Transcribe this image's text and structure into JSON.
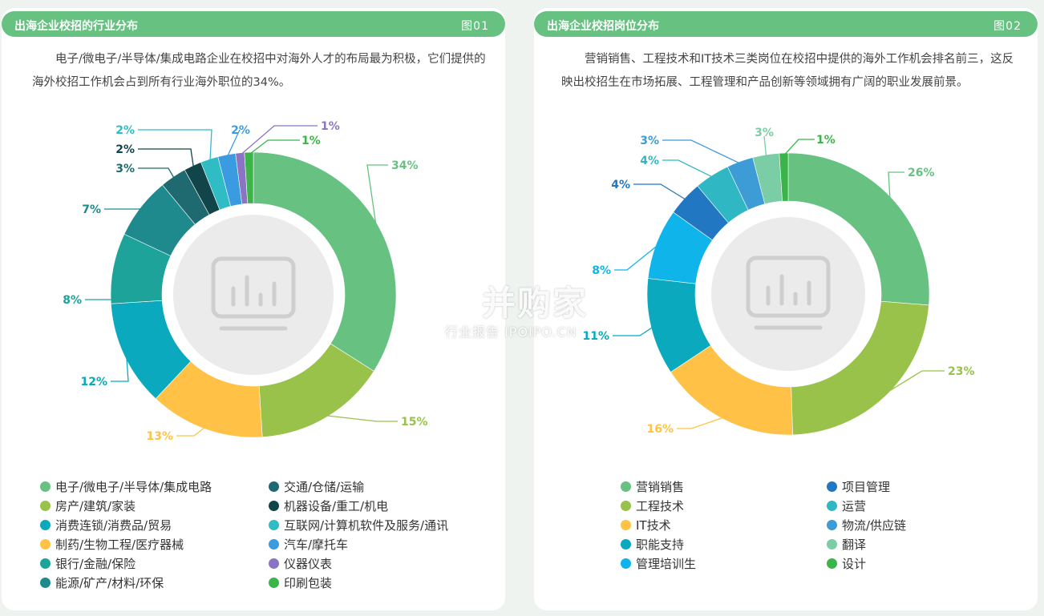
{
  "watermark": {
    "main": "并购家",
    "sub": "行业报告 IPOIPO.CN"
  },
  "panels": [
    {
      "title": "出海企业校招的行业分布",
      "figure": "图01",
      "description": "电子/微电子/半导体/集成电路企业在校招中对海外人才的布局最为积极，它们提供的海外校招工作机会占到所有行业海外职位的34%。"
    },
    {
      "title": "出海企业校招岗位分布",
      "figure": "图02",
      "description": "营销销售、工程技术和IT技术三类岗位在校招中提供的海外工作机会排名前三，这反映出校招生在市场拓展、工程管理和产品创新等领域拥有广阔的职业发展前景。"
    }
  ],
  "chart_data": [
    {
      "type": "pie",
      "donut": true,
      "title": "出海企业校招的行业分布",
      "slices": [
        {
          "label": "电子/微电子/半导体/集成电路",
          "value": 34,
          "color": "#67c282"
        },
        {
          "label": "房产/建筑/家装",
          "value": 15,
          "color": "#99c24a"
        },
        {
          "label": "制药/生物工程/医疗器械",
          "value": 13,
          "color": "#ffc247"
        },
        {
          "label": "消费连锁/消费品/贸易",
          "value": 12,
          "color": "#0aa9bd"
        },
        {
          "label": "银行/金融/保险",
          "value": 8,
          "color": "#1da399"
        },
        {
          "label": "能源/矿产/材料/环保",
          "value": 7,
          "color": "#1f8a8d"
        },
        {
          "label": "交通/仓储/运输",
          "value": 3,
          "color": "#1e6a70"
        },
        {
          "label": "机器设备/重工/机电",
          "value": 2,
          "color": "#12454a"
        },
        {
          "label": "互联网/计算机软件及服务/通讯",
          "value": 2,
          "color": "#2fbcc5"
        },
        {
          "label": "汽车/摩托车",
          "value": 2,
          "color": "#3b9be1"
        },
        {
          "label": "仪器仪表",
          "value": 1,
          "color": "#8b74c4"
        },
        {
          "label": "印刷包装",
          "value": 1,
          "color": "#3bb44a"
        }
      ],
      "value_labels": [
        "34%",
        "15%",
        "13%",
        "12%",
        "8%",
        "7%",
        "3%",
        "2%",
        "2%",
        "2%",
        "1%",
        "1%"
      ],
      "legend_columns": [
        [
          "电子/微电子/半导体/集成电路",
          "房产/建筑/家装",
          "消费连锁/消费品/贸易",
          "制药/生物工程/医疗器械",
          "银行/金融/保险",
          "能源/矿产/材料/环保"
        ],
        [
          "交通/仓储/运输",
          "机器设备/重工/机电",
          "互联网/计算机软件及服务/通讯",
          "汽车/摩托车",
          "仪器仪表",
          "印刷包装"
        ]
      ]
    },
    {
      "type": "pie",
      "donut": true,
      "title": "出海企业校招岗位分布",
      "slices": [
        {
          "label": "营销销售",
          "value": 26,
          "color": "#67c282"
        },
        {
          "label": "工程技术",
          "value": 23,
          "color": "#99c24a"
        },
        {
          "label": "IT技术",
          "value": 16,
          "color": "#ffc247"
        },
        {
          "label": "职能支持",
          "value": 11,
          "color": "#0aa9bd"
        },
        {
          "label": "管理培训生",
          "value": 8,
          "color": "#0fb5ea"
        },
        {
          "label": "项目管理",
          "value": 4,
          "color": "#2277c2"
        },
        {
          "label": "运营",
          "value": 4,
          "color": "#2fb8c3"
        },
        {
          "label": "物流/供应链",
          "value": 3,
          "color": "#3d9bd6"
        },
        {
          "label": "翻译",
          "value": 3,
          "color": "#7acda5"
        },
        {
          "label": "设计",
          "value": 1,
          "color": "#3bb44a"
        }
      ],
      "value_labels": [
        "26%",
        "23%",
        "16%",
        "11%",
        "8%",
        "4%",
        "4%",
        "3%",
        "3%",
        "1%"
      ],
      "legend_columns": [
        [
          "营销销售",
          "工程技术",
          "IT技术",
          "职能支持",
          "管理培训生"
        ],
        [
          "项目管理",
          "运营",
          "物流/供应链",
          "翻译",
          "设计"
        ]
      ]
    }
  ]
}
